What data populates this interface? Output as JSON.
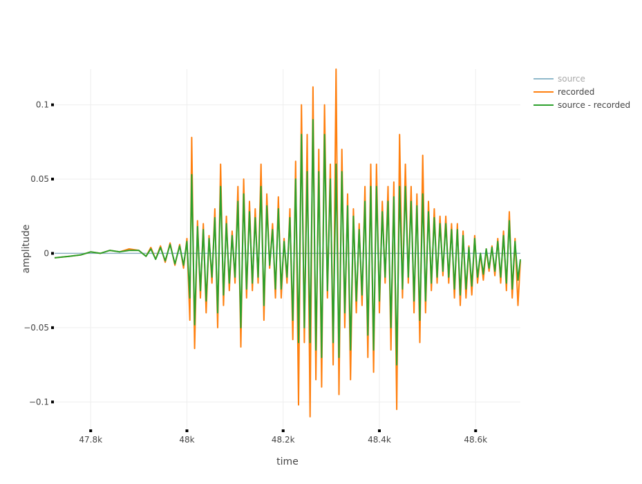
{
  "chart_data": {
    "type": "line",
    "xlabel": "time",
    "ylabel": "amplitude",
    "xlim": [
      47725,
      48693
    ],
    "ylim": [
      -0.118,
      0.124
    ],
    "x_ticks": [
      47800,
      48000,
      48200,
      48400,
      48600
    ],
    "x_tick_labels": [
      "47.8k",
      "48k",
      "48.2k",
      "48.4k",
      "48.6k"
    ],
    "y_ticks": [
      0.1,
      0.05,
      0,
      -0.05,
      -0.1
    ],
    "y_tick_labels": [
      "0.1",
      "0.05",
      "0",
      "−0.05",
      "−0.1"
    ],
    "grid": true,
    "legend_position": "top-right",
    "series": [
      {
        "name": "source",
        "color": "#8fb8cb",
        "legend_dimmed": true,
        "x": [
          47725,
          48693
        ],
        "y": [
          0,
          0
        ]
      },
      {
        "name": "recorded",
        "color": "#ff7f0e",
        "x": [
          47725,
          47755,
          47780,
          47800,
          47820,
          47840,
          47860,
          47880,
          47900,
          47915,
          47925,
          47935,
          47945,
          47955,
          47965,
          47975,
          47985,
          47993,
          48000,
          48006,
          48010,
          48016,
          48022,
          48028,
          48034,
          48040,
          48046,
          48052,
          48058,
          48064,
          48070,
          48076,
          48082,
          48088,
          48094,
          48100,
          48106,
          48112,
          48118,
          48124,
          48130,
          48136,
          48142,
          48148,
          48154,
          48160,
          48166,
          48172,
          48178,
          48184,
          48190,
          48196,
          48202,
          48208,
          48214,
          48220,
          48226,
          48232,
          48238,
          48244,
          48250,
          48256,
          48262,
          48268,
          48274,
          48280,
          48286,
          48292,
          48298,
          48304,
          48310,
          48316,
          48322,
          48328,
          48334,
          48340,
          48346,
          48352,
          48358,
          48364,
          48370,
          48376,
          48382,
          48388,
          48394,
          48400,
          48406,
          48412,
          48418,
          48424,
          48430,
          48436,
          48442,
          48448,
          48454,
          48460,
          48466,
          48472,
          48478,
          48484,
          48490,
          48496,
          48502,
          48508,
          48514,
          48520,
          48526,
          48532,
          48538,
          48544,
          48550,
          48556,
          48562,
          48568,
          48574,
          48580,
          48586,
          48592,
          48598,
          48604,
          48610,
          48616,
          48622,
          48628,
          48634,
          48640,
          48646,
          48652,
          48658,
          48664,
          48670,
          48676,
          48682,
          48688,
          48693
        ],
        "y": [
          -0.003,
          -0.002,
          -0.001,
          0.001,
          0.0,
          0.002,
          0.001,
          0.003,
          0.002,
          -0.002,
          0.004,
          -0.004,
          0.005,
          -0.006,
          0.007,
          -0.008,
          0.006,
          -0.01,
          0.01,
          -0.045,
          0.078,
          -0.064,
          0.022,
          -0.03,
          0.02,
          -0.04,
          0.012,
          -0.02,
          0.03,
          -0.05,
          0.06,
          -0.035,
          0.025,
          -0.025,
          0.015,
          -0.02,
          0.045,
          -0.063,
          0.05,
          -0.03,
          0.035,
          -0.025,
          0.03,
          -0.02,
          0.06,
          -0.045,
          0.04,
          -0.01,
          0.02,
          -0.03,
          0.038,
          -0.03,
          0.01,
          -0.02,
          0.03,
          -0.058,
          0.062,
          -0.102,
          0.1,
          -0.06,
          0.08,
          -0.11,
          0.112,
          -0.085,
          0.07,
          -0.09,
          0.1,
          -0.03,
          0.06,
          -0.075,
          0.124,
          -0.095,
          0.07,
          -0.05,
          0.04,
          -0.085,
          0.03,
          -0.04,
          0.02,
          -0.035,
          0.045,
          -0.07,
          0.06,
          -0.08,
          0.06,
          -0.04,
          0.035,
          -0.02,
          0.045,
          -0.065,
          0.048,
          -0.105,
          0.08,
          -0.03,
          0.06,
          -0.02,
          0.045,
          -0.04,
          0.04,
          -0.06,
          0.066,
          -0.04,
          0.035,
          -0.025,
          0.03,
          -0.02,
          0.025,
          -0.015,
          0.025,
          -0.02,
          0.02,
          -0.03,
          0.02,
          -0.035,
          0.015,
          -0.03,
          0.005,
          -0.028,
          0.012,
          -0.02,
          0.0,
          -0.018,
          0.003,
          -0.012,
          0.005,
          -0.015,
          0.01,
          -0.02,
          0.015,
          -0.025,
          0.028,
          -0.03,
          0.01,
          -0.035,
          -0.005
        ]
      },
      {
        "name": "source - recorded",
        "color": "#2ca02c",
        "x": [
          47725,
          47755,
          47780,
          47800,
          47820,
          47840,
          47860,
          47880,
          47900,
          47915,
          47925,
          47935,
          47945,
          47955,
          47965,
          47975,
          47985,
          47993,
          48000,
          48006,
          48010,
          48016,
          48022,
          48028,
          48034,
          48040,
          48046,
          48052,
          48058,
          48064,
          48070,
          48076,
          48082,
          48088,
          48094,
          48100,
          48106,
          48112,
          48118,
          48124,
          48130,
          48136,
          48142,
          48148,
          48154,
          48160,
          48166,
          48172,
          48178,
          48184,
          48190,
          48196,
          48202,
          48208,
          48214,
          48220,
          48226,
          48232,
          48238,
          48244,
          48250,
          48256,
          48262,
          48268,
          48274,
          48280,
          48286,
          48292,
          48298,
          48304,
          48310,
          48316,
          48322,
          48328,
          48334,
          48340,
          48346,
          48352,
          48358,
          48364,
          48370,
          48376,
          48382,
          48388,
          48394,
          48400,
          48406,
          48412,
          48418,
          48424,
          48430,
          48436,
          48442,
          48448,
          48454,
          48460,
          48466,
          48472,
          48478,
          48484,
          48490,
          48496,
          48502,
          48508,
          48514,
          48520,
          48526,
          48532,
          48538,
          48544,
          48550,
          48556,
          48562,
          48568,
          48574,
          48580,
          48586,
          48592,
          48598,
          48604,
          48610,
          48616,
          48622,
          48628,
          48634,
          48640,
          48646,
          48652,
          48658,
          48664,
          48670,
          48676,
          48682,
          48688,
          48693
        ],
        "y": [
          -0.003,
          -0.002,
          -0.001,
          0.001,
          0.0,
          0.002,
          0.001,
          0.002,
          0.002,
          -0.002,
          0.003,
          -0.004,
          0.004,
          -0.005,
          0.006,
          -0.007,
          0.005,
          -0.008,
          0.008,
          -0.03,
          0.053,
          -0.048,
          0.018,
          -0.025,
          0.016,
          -0.032,
          0.01,
          -0.016,
          0.024,
          -0.04,
          0.045,
          -0.028,
          0.02,
          -0.02,
          0.012,
          -0.016,
          0.035,
          -0.05,
          0.04,
          -0.024,
          0.028,
          -0.02,
          0.024,
          -0.016,
          0.045,
          -0.035,
          0.032,
          -0.008,
          0.016,
          -0.024,
          0.03,
          -0.024,
          0.008,
          -0.016,
          0.024,
          -0.045,
          0.05,
          -0.06,
          0.08,
          -0.05,
          0.055,
          -0.06,
          0.09,
          -0.065,
          0.055,
          -0.07,
          0.08,
          -0.025,
          0.05,
          -0.06,
          0.06,
          -0.07,
          0.055,
          -0.04,
          0.032,
          -0.065,
          0.025,
          -0.032,
          0.016,
          -0.028,
          0.035,
          -0.055,
          0.045,
          -0.065,
          0.045,
          -0.032,
          0.028,
          -0.016,
          0.035,
          -0.05,
          0.038,
          -0.075,
          0.045,
          -0.024,
          0.045,
          -0.016,
          0.035,
          -0.032,
          0.032,
          -0.045,
          0.04,
          -0.032,
          0.028,
          -0.02,
          0.024,
          -0.016,
          0.02,
          -0.012,
          0.02,
          -0.016,
          0.016,
          -0.024,
          0.016,
          -0.028,
          0.012,
          -0.024,
          0.004,
          -0.022,
          0.01,
          -0.016,
          0.0,
          -0.014,
          0.003,
          -0.01,
          0.004,
          -0.012,
          0.008,
          -0.016,
          0.012,
          -0.02,
          0.022,
          -0.024,
          0.008,
          -0.018,
          -0.004
        ]
      }
    ]
  }
}
